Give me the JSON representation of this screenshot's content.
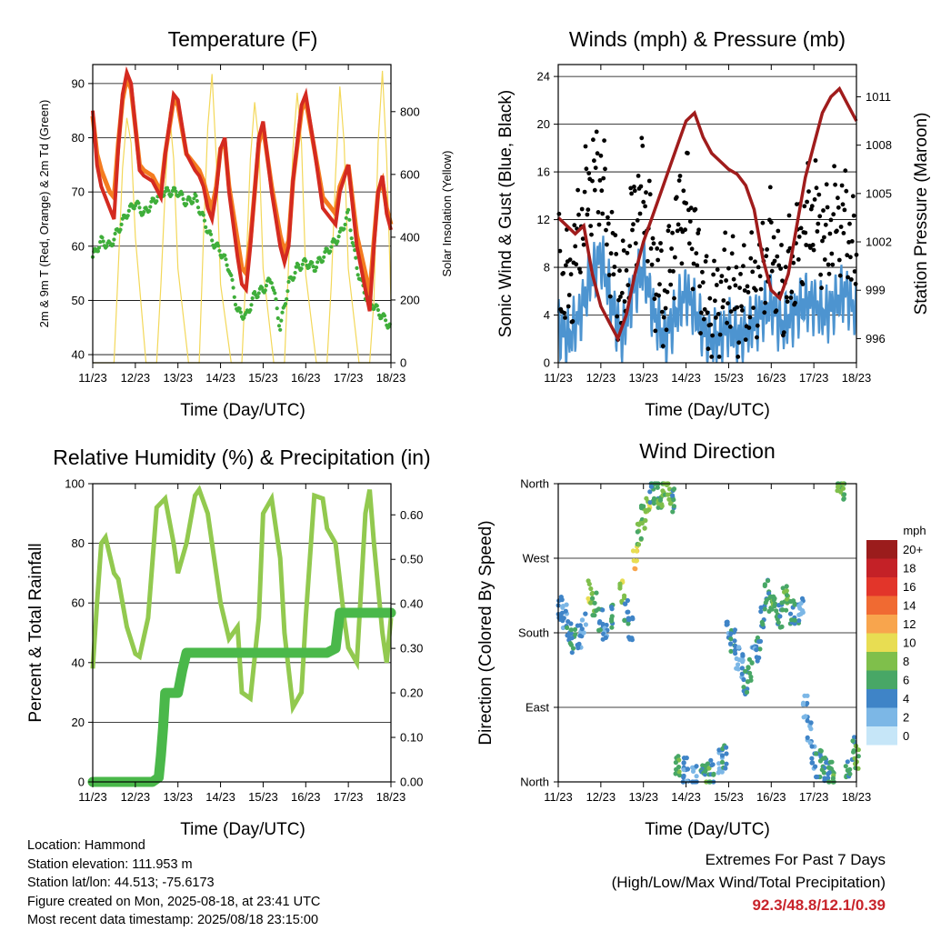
{
  "colors": {
    "temp_2m": "#d42a20",
    "temp_9m": "#f47c20",
    "dewpoint": "#3fae3a",
    "solar": "#f3d85a",
    "wind": "#4d94d0",
    "gust": "#000000",
    "pressure": "#a01c1c",
    "rh": "#92c94f",
    "rain": "#4ab84a",
    "highlight": "#c8242b"
  },
  "day_ticks": [
    "11/23",
    "12/23",
    "13/23",
    "14/23",
    "15/23",
    "16/23",
    "17/23",
    "18/23"
  ],
  "time_axis_label": "Time (Day/UTC)",
  "chart_data": [
    {
      "id": "temperature",
      "type": "line",
      "title": "Temperature (F)",
      "ylabel": "2m & 9m T (Red, Orange) & 2m Td (Green)",
      "y2label": "Solar Insolation (Yellow)",
      "ylim": [
        38.5,
        93.5
      ],
      "yticks": [
        40,
        50,
        60,
        70,
        80,
        90
      ],
      "y2lim": [
        0,
        950
      ],
      "y2ticks": [
        0,
        200,
        400,
        600,
        800
      ],
      "xlim": [
        0,
        7
      ],
      "grid": true,
      "series": [
        {
          "id": "t2m",
          "axis": "left",
          "x": [
            0,
            0.1,
            0.2,
            0.4,
            0.5,
            0.6,
            0.7,
            0.8,
            0.9,
            1.0,
            1.1,
            1.2,
            1.4,
            1.6,
            1.7,
            1.9,
            2.0,
            2.2,
            2.4,
            2.5,
            2.6,
            2.7,
            2.8,
            2.9,
            3.0,
            3.1,
            3.2,
            3.4,
            3.5,
            3.6,
            3.7,
            3.8,
            3.9,
            4.0,
            4.2,
            4.4,
            4.5,
            4.6,
            4.7,
            4.9,
            5.0,
            5.2,
            5.4,
            5.6,
            5.7,
            5.8,
            6.0,
            6.2,
            6.4,
            6.5,
            6.6,
            6.7,
            6.8,
            6.9,
            7.0
          ],
          "y": [
            85,
            75,
            71,
            67,
            65,
            78,
            88,
            92,
            90,
            82,
            74,
            73,
            72,
            69,
            77,
            88,
            87,
            77,
            74,
            73,
            71,
            67,
            65,
            70,
            78,
            80,
            70,
            58,
            53,
            52,
            60,
            70,
            80,
            83,
            70,
            60,
            57,
            60,
            72,
            86,
            88,
            78,
            67,
            65,
            64,
            70,
            75,
            60,
            52,
            48,
            60,
            70,
            73,
            66,
            63
          ]
        },
        {
          "id": "t9m",
          "axis": "left",
          "x": [
            0,
            0.1,
            0.2,
            0.4,
            0.5,
            0.6,
            0.7,
            0.8,
            0.9,
            1.0,
            1.1,
            1.2,
            1.4,
            1.6,
            1.7,
            1.9,
            2.0,
            2.2,
            2.4,
            2.5,
            2.6,
            2.7,
            2.8,
            2.9,
            3.0,
            3.1,
            3.2,
            3.4,
            3.5,
            3.6,
            3.7,
            3.8,
            3.9,
            4.0,
            4.2,
            4.4,
            4.5,
            4.6,
            4.7,
            4.9,
            5.0,
            5.2,
            5.4,
            5.6,
            5.7,
            5.8,
            6.0,
            6.2,
            6.4,
            6.5,
            6.6,
            6.7,
            6.8,
            6.9,
            7.0
          ],
          "y": [
            84,
            77,
            74,
            70,
            69,
            79,
            87,
            91,
            89,
            82,
            75,
            74,
            73,
            70,
            77,
            87,
            86,
            77,
            75,
            74,
            72,
            69,
            67,
            71,
            78,
            79,
            71,
            61,
            56,
            55,
            61,
            70,
            79,
            82,
            71,
            62,
            59,
            61,
            72,
            85,
            87,
            78,
            69,
            67,
            66,
            71,
            75,
            62,
            55,
            51,
            61,
            70,
            72,
            67,
            64
          ]
        },
        {
          "id": "td",
          "axis": "left",
          "x": [
            0,
            0.2,
            0.4,
            0.6,
            0.8,
            1.0,
            1.2,
            1.4,
            1.6,
            1.8,
            2.0,
            2.2,
            2.4,
            2.6,
            2.8,
            3.0,
            3.2,
            3.4,
            3.6,
            3.8,
            4.0,
            4.2,
            4.4,
            4.6,
            4.8,
            5.0,
            5.2,
            5.4,
            5.6,
            5.8,
            6.0,
            6.2,
            6.4,
            6.6,
            6.8,
            7.0
          ],
          "y": [
            58,
            61,
            60,
            63,
            66,
            68,
            66,
            68,
            70,
            70,
            70,
            68,
            69,
            65,
            61,
            59,
            56,
            48,
            47,
            51,
            52,
            54,
            45,
            53,
            56,
            57,
            56,
            58,
            60,
            62,
            66,
            56,
            51,
            49,
            47,
            45
          ]
        },
        {
          "id": "solar",
          "axis": "right",
          "x": [
            0,
            0.25,
            0.5,
            0.6,
            0.7,
            0.8,
            0.9,
            1.0,
            1.25,
            1.5,
            1.6,
            1.7,
            1.8,
            1.9,
            2.0,
            2.25,
            2.5,
            2.6,
            2.7,
            2.8,
            2.9,
            3.0,
            3.25,
            3.5,
            3.6,
            3.7,
            3.8,
            3.9,
            4.0,
            4.25,
            4.5,
            4.6,
            4.7,
            4.8,
            4.9,
            5.0,
            5.25,
            5.5,
            5.6,
            5.7,
            5.8,
            5.9,
            6.0,
            6.25,
            6.5,
            6.6,
            6.7,
            6.8,
            6.9,
            7.0
          ],
          "y": [
            0,
            0,
            0,
            300,
            620,
            780,
            700,
            400,
            0,
            0,
            250,
            550,
            800,
            650,
            300,
            0,
            0,
            400,
            750,
            920,
            650,
            250,
            0,
            0,
            300,
            650,
            830,
            700,
            300,
            0,
            0,
            320,
            680,
            860,
            700,
            280,
            0,
            0,
            250,
            600,
            880,
            700,
            300,
            0,
            0,
            200,
            700,
            930,
            650,
            200
          ]
        }
      ]
    },
    {
      "id": "winds",
      "type": "scatter",
      "title": "Winds (mph) & Pressure (mb)",
      "ylabel": "Sonic Wind & Gust (Blue, Black)",
      "y2label": "Station Pressure (Maroon)",
      "ylim": [
        0,
        25
      ],
      "yticks": [
        0,
        4,
        8,
        12,
        16,
        20,
        24
      ],
      "y2lim": [
        994.5,
        1013
      ],
      "y2ticks": [
        996,
        999,
        1002,
        1005,
        1008,
        1011
      ],
      "xlim": [
        0,
        7
      ],
      "grid": true,
      "series": [
        {
          "id": "wind",
          "axis": "left",
          "x": [
            0,
            0.25,
            0.5,
            0.75,
            1.0,
            1.25,
            1.5,
            1.75,
            2.0,
            2.25,
            2.5,
            2.75,
            3.0,
            3.25,
            3.5,
            3.75,
            4.0,
            4.25,
            4.5,
            4.75,
            5.0,
            5.25,
            5.5,
            5.75,
            6.0,
            6.25,
            6.5,
            6.75,
            7.0
          ],
          "y": [
            3,
            2,
            4,
            7,
            9,
            5,
            2,
            6,
            8,
            4,
            2,
            4,
            6,
            4,
            2,
            2,
            3,
            2,
            3,
            4,
            5,
            3,
            4,
            5,
            5,
            4,
            5,
            6,
            4
          ]
        },
        {
          "id": "gust",
          "axis": "left",
          "x": [
            0,
            0.25,
            0.5,
            0.75,
            1.0,
            1.25,
            1.5,
            1.75,
            2.0,
            2.25,
            2.5,
            2.75,
            3.0,
            3.25,
            3.5,
            3.75,
            4.0,
            4.25,
            4.5,
            4.75,
            5.0,
            5.25,
            5.5,
            5.75,
            6.0,
            6.25,
            6.5,
            6.75,
            7.0
          ],
          "y": [
            8,
            6,
            11,
            15,
            16,
            9,
            5,
            12,
            15,
            8,
            5,
            11,
            14,
            9,
            4,
            5,
            7,
            5,
            6,
            7,
            10,
            6,
            8,
            11,
            13,
            10,
            12,
            12,
            8
          ]
        },
        {
          "id": "pressure",
          "axis": "right",
          "x": [
            0,
            0.2,
            0.4,
            0.6,
            0.8,
            1.0,
            1.2,
            1.4,
            1.6,
            1.8,
            2.0,
            2.2,
            2.4,
            2.6,
            2.8,
            3.0,
            3.2,
            3.4,
            3.6,
            3.8,
            4.0,
            4.2,
            4.4,
            4.6,
            4.8,
            5.0,
            5.2,
            5.4,
            5.6,
            5.8,
            6.0,
            6.2,
            6.4,
            6.6,
            6.8,
            7.0
          ],
          "y": [
            1003.5,
            1003,
            1002.5,
            1003,
            1000,
            998,
            997,
            996,
            997.5,
            1000,
            1002,
            1003.5,
            1005,
            1006.5,
            1008,
            1009.5,
            1010,
            1008.5,
            1007.5,
            1007,
            1006.5,
            1006.2,
            1005.5,
            1004,
            1001,
            999,
            998.5,
            1000,
            1003,
            1006,
            1008,
            1010,
            1011,
            1011.5,
            1010.5,
            1009.5
          ]
        }
      ]
    },
    {
      "id": "humidity",
      "type": "line",
      "title": "Relative Humidity (%) & Precipitation (in)",
      "ylabel": "Percent & Total Rainfall",
      "ylim": [
        0,
        100
      ],
      "yticks": [
        0,
        20,
        40,
        60,
        80,
        100
      ],
      "y2lim": [
        0,
        0.67
      ],
      "y2ticks": [
        "0.00",
        "0.10",
        "0.20",
        "0.30",
        "0.40",
        "0.50",
        "0.60"
      ],
      "xlim": [
        0,
        7
      ],
      "grid": true,
      "series": [
        {
          "id": "rh",
          "axis": "left",
          "x": [
            0,
            0.1,
            0.2,
            0.3,
            0.5,
            0.6,
            0.8,
            1.0,
            1.1,
            1.3,
            1.5,
            1.7,
            1.9,
            2.0,
            2.2,
            2.4,
            2.5,
            2.7,
            2.9,
            3.0,
            3.2,
            3.4,
            3.5,
            3.7,
            3.9,
            4.0,
            4.2,
            4.4,
            4.5,
            4.7,
            4.9,
            5.0,
            5.2,
            5.4,
            5.5,
            5.7,
            5.9,
            6.0,
            6.2,
            6.4,
            6.5,
            6.6,
            6.8,
            6.9,
            7.0
          ],
          "y": [
            38,
            60,
            80,
            82,
            70,
            68,
            52,
            43,
            42,
            55,
            92,
            95,
            80,
            70,
            80,
            96,
            98,
            90,
            70,
            60,
            48,
            52,
            30,
            28,
            55,
            90,
            95,
            75,
            50,
            25,
            30,
            55,
            96,
            95,
            85,
            80,
            55,
            45,
            40,
            90,
            98,
            80,
            50,
            40,
            55
          ]
        },
        {
          "id": "rain",
          "axis": "right",
          "x": [
            0,
            0.5,
            1.0,
            1.4,
            1.55,
            1.6,
            1.65,
            1.7,
            2.0,
            2.1,
            2.2,
            2.3,
            2.5,
            3.0,
            3.5,
            4.0,
            4.5,
            5.0,
            5.5,
            5.7,
            5.8,
            6.0,
            6.5,
            7.0
          ],
          "y": [
            0,
            0,
            0,
            0,
            0.01,
            0.06,
            0.12,
            0.2,
            0.2,
            0.25,
            0.29,
            0.29,
            0.29,
            0.29,
            0.29,
            0.29,
            0.29,
            0.29,
            0.29,
            0.3,
            0.38,
            0.38,
            0.38,
            0.38
          ]
        }
      ]
    },
    {
      "id": "direction",
      "type": "scatter",
      "title": "Wind Direction",
      "ylabel": "Direction (Colored By Speed)",
      "yticks": [
        "North",
        "East",
        "South",
        "West",
        "North"
      ],
      "ylim": [
        0,
        360
      ],
      "xlim": [
        0,
        7
      ],
      "grid": true,
      "legend": {
        "title": "mph",
        "placement": "right",
        "labels": [
          "20+",
          "18",
          "16",
          "14",
          "12",
          "10",
          "8",
          "6",
          "4",
          "2",
          "0"
        ],
        "colors": [
          "#9b1c1c",
          "#c42127",
          "#e2352a",
          "#f06a32",
          "#f8a54d",
          "#e8dd52",
          "#7fbf4b",
          "#48a766",
          "#3f84c7",
          "#7cb7e6",
          "#c6e6f8"
        ]
      },
      "series": [
        {
          "name": "",
          "x": [
            0.05,
            0.15,
            0.25,
            0.35,
            0.5,
            0.6,
            0.75,
            0.85,
            1.0,
            1.1,
            1.3,
            1.5,
            1.6,
            1.7,
            1.8,
            1.9,
            2.0,
            2.1,
            2.2,
            2.3,
            2.4,
            2.5,
            2.6,
            2.7,
            2.8,
            2.9,
            3.0,
            3.2,
            3.4,
            3.5,
            3.6,
            3.8,
            3.9,
            4.0,
            4.1,
            4.2,
            4.3,
            4.4,
            4.5,
            4.6,
            4.7,
            4.8,
            4.9,
            5.0,
            5.1,
            5.2,
            5.3,
            5.4,
            5.5,
            5.6,
            5.7,
            5.8,
            5.9,
            6.0,
            6.1,
            6.2,
            6.3,
            6.4,
            6.5,
            6.6,
            6.7,
            6.8,
            6.9,
            7.0
          ],
          "y": [
            210,
            200,
            180,
            170,
            175,
            190,
            230,
            215,
            195,
            180,
            200,
            230,
            205,
            185,
            270,
            300,
            320,
            340,
            350,
            355,
            345,
            360,
            350,
            340,
            20,
            10,
            15,
            5,
            8,
            10,
            12,
            25,
            30,
            180,
            170,
            150,
            140,
            120,
            135,
            150,
            160,
            200,
            230,
            215,
            210,
            200,
            220,
            230,
            205,
            200,
            215,
            90,
            60,
            30,
            20,
            25,
            15,
            10,
            5,
            360,
            355,
            20,
            40,
            30
          ],
          "speed": [
            3,
            2,
            4,
            5,
            3,
            2,
            9,
            6,
            4,
            3,
            5,
            8,
            4,
            3,
            10,
            7,
            6,
            8,
            5,
            4,
            6,
            7,
            8,
            5,
            6,
            4,
            3,
            2,
            5,
            6,
            4,
            3,
            4,
            3,
            4,
            2,
            3,
            4,
            5,
            3,
            4,
            4,
            5,
            6,
            5,
            4,
            6,
            7,
            5,
            4,
            3,
            2,
            2,
            3,
            4,
            5,
            4,
            5,
            6,
            7,
            6,
            5,
            4,
            6
          ]
        }
      ]
    }
  ],
  "info": {
    "location": "Location: Hammond",
    "elevation": "Station elevation: 111.953 m",
    "latlon": "Station lat/lon: 44.513; -75.6173",
    "created": "Figure created on Mon, 2025-08-18, at 23:41 UTC",
    "recent": "Most recent data timestamp: 2025/08/18 23:15:00"
  },
  "extremes": {
    "title": "Extremes For Past 7 Days",
    "subtitle": "(High/Low/Max Wind/Total Precipitation)",
    "values": "92.3/48.8/12.1/0.39"
  }
}
